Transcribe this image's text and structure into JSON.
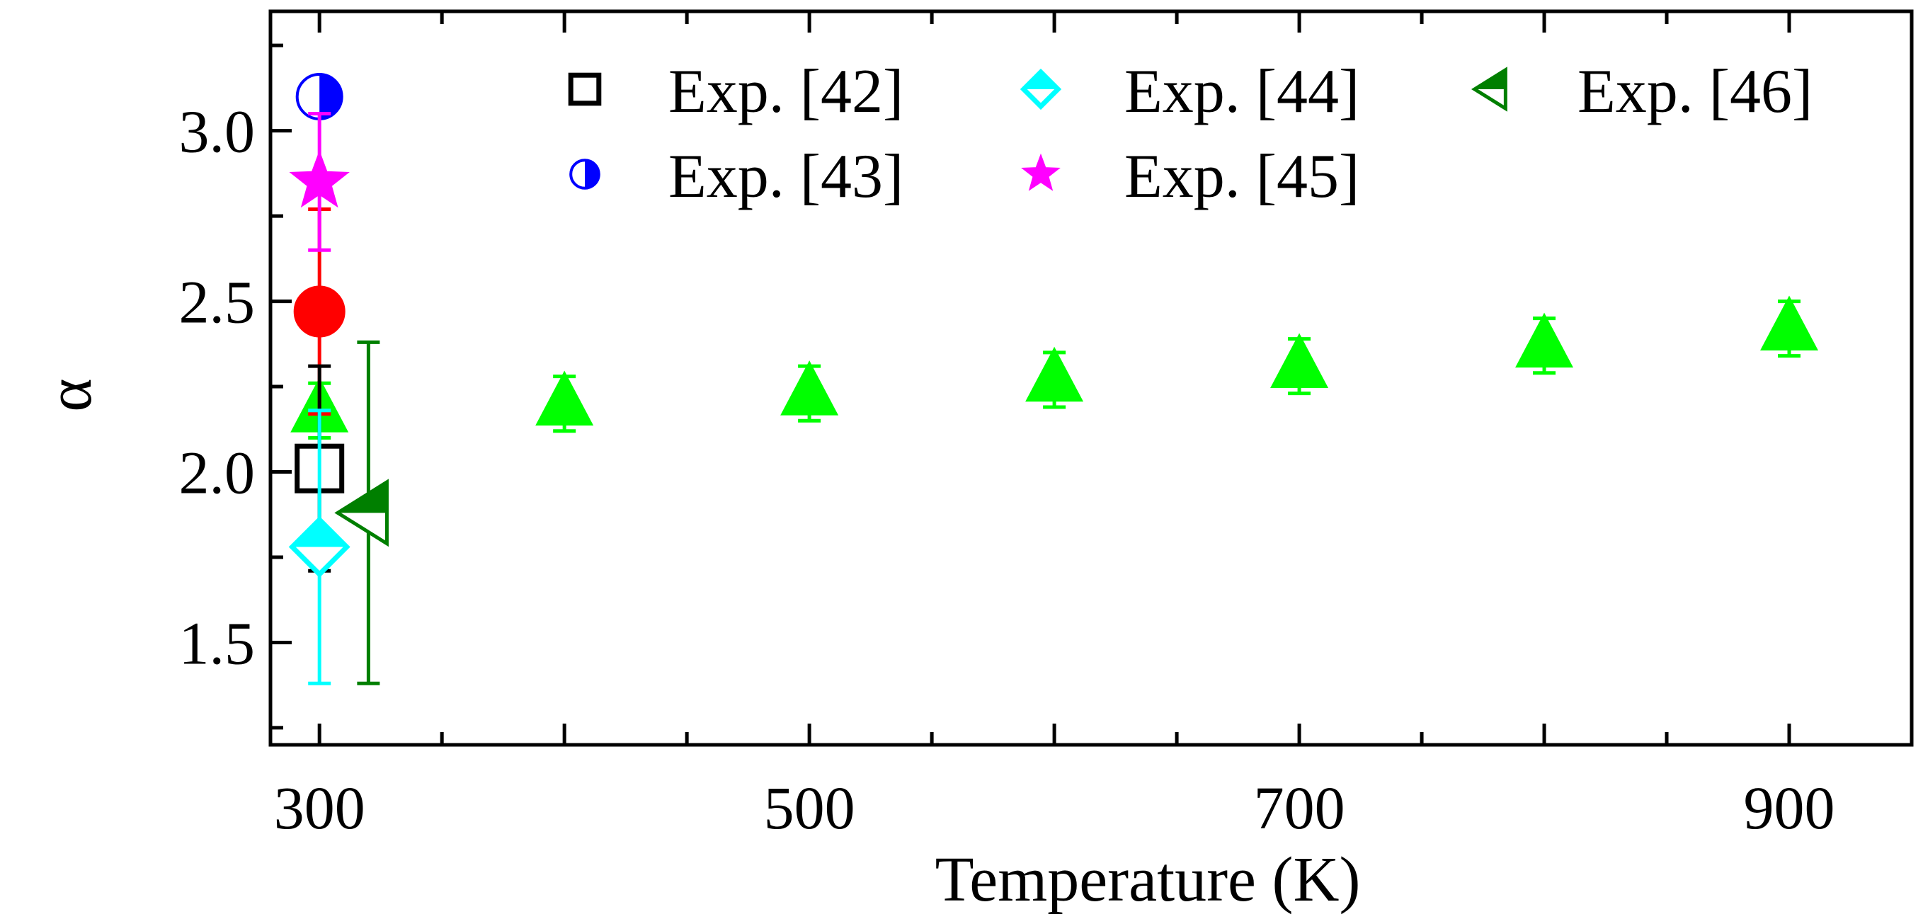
{
  "chart_data": {
    "type": "scatter",
    "xlabel": "Temperature (K)",
    "ylabel": "α",
    "xlim": [
      280,
      950
    ],
    "ylim": [
      1.2,
      3.35
    ],
    "x_ticks": [
      300,
      500,
      700,
      900
    ],
    "x_tick_labels": [
      "300",
      "500",
      "700",
      "900"
    ],
    "y_ticks": [
      1.5,
      2.0,
      2.5,
      3.0
    ],
    "y_tick_labels": [
      "1.5",
      "2.0",
      "2.5",
      "3.0"
    ],
    "grid": false,
    "legend_position": "top",
    "series": [
      {
        "marker": "triangle-up",
        "color": "#00ff00",
        "points": [
          {
            "x": 300,
            "y": 2.18,
            "err": 0.08
          },
          {
            "x": 400,
            "y": 2.2,
            "err": 0.08
          },
          {
            "x": 500,
            "y": 2.23,
            "err": 0.08
          },
          {
            "x": 600,
            "y": 2.27,
            "err": 0.08
          },
          {
            "x": 700,
            "y": 2.31,
            "err": 0.08
          },
          {
            "x": 800,
            "y": 2.37,
            "err": 0.08
          },
          {
            "x": 900,
            "y": 2.42,
            "err": 0.08
          }
        ]
      },
      {
        "marker": "circle",
        "color": "#ff0000",
        "points": [
          {
            "x": 300,
            "y": 2.47,
            "err": 0.3
          }
        ]
      },
      {
        "name": "Exp. [42]",
        "marker": "square-open",
        "color": "#000000",
        "points": [
          {
            "x": 300,
            "y": 2.01,
            "err": 0.3
          }
        ]
      },
      {
        "name": "Exp. [43]",
        "marker": "circle-half",
        "color": "#0000ff",
        "points": [
          {
            "x": 300,
            "y": 3.1,
            "err": 0.0
          }
        ]
      },
      {
        "name": "Exp. [44]",
        "marker": "diamond-half",
        "color": "#00ffff",
        "points": [
          {
            "x": 300,
            "y": 1.78,
            "err": 0.4
          }
        ]
      },
      {
        "name": "Exp. [45]",
        "marker": "star",
        "color": "#ff00ff",
        "points": [
          {
            "x": 300,
            "y": 2.85,
            "err": 0.2
          }
        ]
      },
      {
        "name": "Exp. [46]",
        "marker": "triangle-left-half",
        "color": "#007f00",
        "points": [
          {
            "x": 320,
            "y": 1.88,
            "err": 0.5
          }
        ]
      }
    ]
  }
}
